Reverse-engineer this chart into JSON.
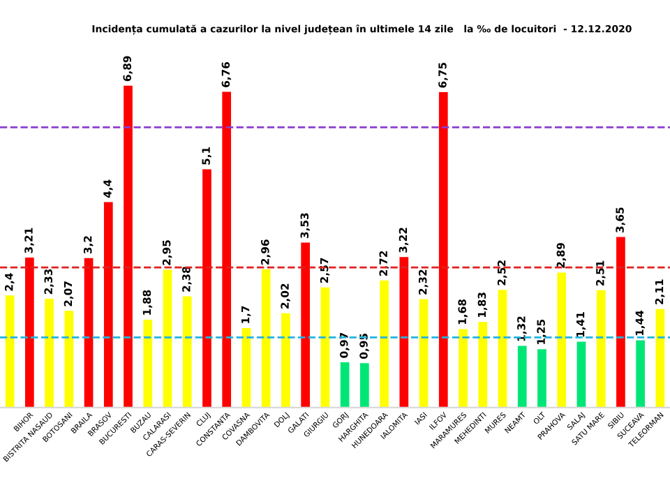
{
  "chart_data": {
    "type": "bar",
    "title": "Incidența cumulată a cazurilor la nivel județean în ultimele 14 zile   la ‰ de locuitori  - 12.12.2020",
    "categories": [
      null,
      "BIHOR",
      "BISTRITA NASAUD",
      "BOTOSANI",
      "BRAILA",
      "BRASOV",
      "BUCURESTI",
      "BUZAU",
      "CALARASI",
      "CARAS-SEVERIN",
      "CLUJ",
      "CONSTANTA",
      "COVASNA",
      "DAMBOVITA",
      "DOLJ",
      "GALATI",
      "GIURGIU",
      "GORJ",
      "HARGHITA",
      "HUNEDOARA",
      "IALOMITA",
      "IASI",
      "ILFOV",
      "MARAMURES",
      "MEHEDINTI",
      "MURES",
      "NEAMT",
      "OLT",
      "PRAHOVA",
      "SALAJ",
      "SATU MARE",
      "SIBIU",
      "SUCEAVA",
      "TELEORMAN"
    ],
    "values": [
      2.4,
      3.21,
      2.33,
      2.07,
      3.2,
      4.4,
      6.89,
      1.88,
      2.95,
      2.38,
      5.1,
      6.76,
      1.7,
      2.96,
      2.02,
      3.53,
      2.57,
      0.97,
      0.95,
      2.72,
      3.22,
      2.32,
      6.75,
      1.68,
      1.83,
      2.52,
      1.32,
      1.25,
      2.89,
      1.41,
      2.51,
      3.65,
      1.44,
      2.11
    ],
    "value_labels": [
      "2,4",
      "3,21",
      "2,33",
      "2,07",
      "3,2",
      "4,4",
      "6,89",
      "1,88",
      "2,95",
      "2,38",
      "5,1",
      "6,76",
      "1,7",
      "2,96",
      "2,02",
      "3,53",
      "2,57",
      "0,97",
      "0,95",
      "2,72",
      "3,22",
      "2,32",
      "6,75",
      "1,68",
      "1,83",
      "2,52",
      "1,32",
      "1,25",
      "2,89",
      "1,41",
      "2,51",
      "3,65",
      "1,44",
      "2,11"
    ],
    "colors": [
      "#ffff00",
      "#ff0000",
      "#ffff00",
      "#ffff00",
      "#ff0000",
      "#ff0000",
      "#ff0000",
      "#ffff00",
      "#ffff00",
      "#ffff00",
      "#ff0000",
      "#ff0000",
      "#ffff00",
      "#ffff00",
      "#ffff00",
      "#ff0000",
      "#ffff00",
      "#00e676",
      "#00e676",
      "#ffff00",
      "#ff0000",
      "#ffff00",
      "#ff0000",
      "#ffff00",
      "#ffff00",
      "#ffff00",
      "#00e676",
      "#00e676",
      "#ffff00",
      "#00e676",
      "#ffff00",
      "#ff0000",
      "#00e676",
      "#ffff00"
    ],
    "ref_lines": [
      {
        "axis": "y",
        "value": 1.5,
        "color": "#1fb4e0",
        "line_style": "dashed"
      },
      {
        "axis": "y",
        "value": 3,
        "color": "#e02020",
        "line_style": "dashed"
      },
      {
        "axis": "y",
        "value": 6,
        "color": "#8a3fd0",
        "line_style": "dashed"
      }
    ],
    "grid": false,
    "legend": false
  }
}
